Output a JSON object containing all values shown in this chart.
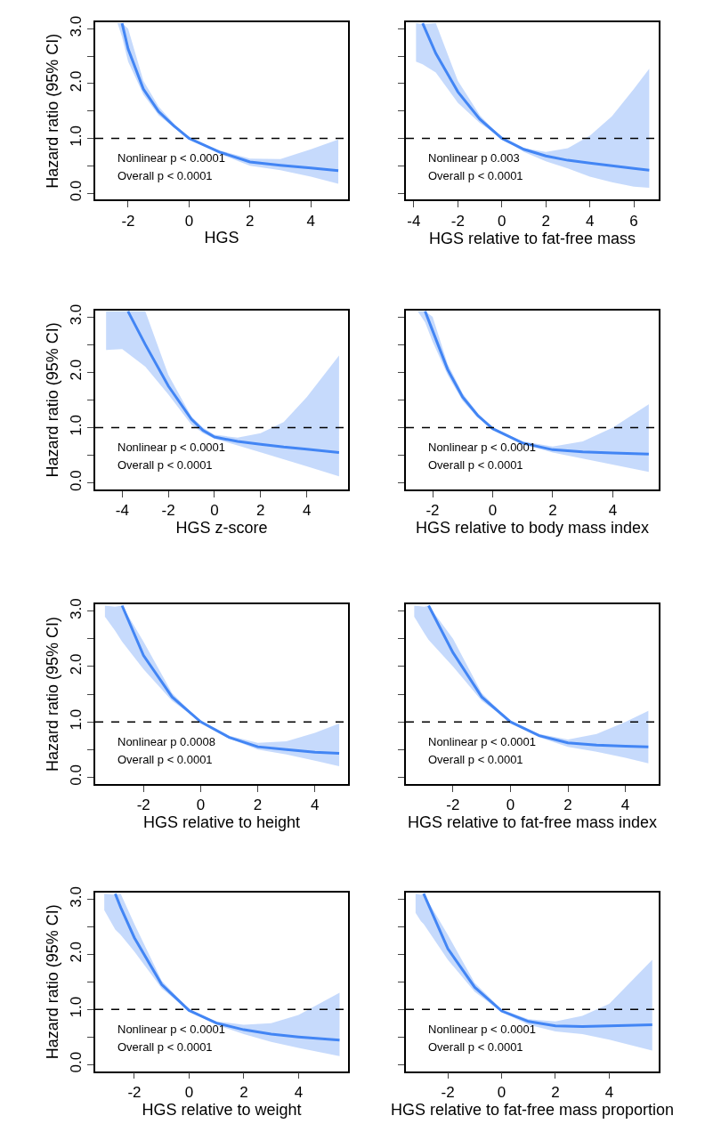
{
  "chart_data": [
    {
      "type": "line",
      "xlabel": "HGS",
      "ylabel": "Hazard ratio (95% CI)",
      "xlim": [
        -3.08,
        5.22
      ],
      "xticks": [
        -2,
        0,
        2,
        4
      ],
      "ylim": [
        -0.12,
        3.12
      ],
      "yticks": [
        {
          "value": 0,
          "label": "0.0"
        },
        {
          "value": 0.5,
          "label": null
        },
        {
          "value": 1,
          "label": "1.0"
        },
        {
          "value": 1.5,
          "label": null
        },
        {
          "value": 2,
          "label": "2.0"
        },
        {
          "value": 2.5,
          "label": null
        },
        {
          "value": 3,
          "label": "3.0"
        }
      ],
      "x": [
        -2.35,
        -2.2,
        -2,
        -1.5,
        -1,
        -0.5,
        0,
        1,
        2,
        3,
        4,
        4.9
      ],
      "marker": "none",
      "line_style": "solid",
      "series": [
        {
          "color": "#4285f4",
          "values": [
            null,
            3.1,
            2.63,
            1.9,
            1.49,
            1.23,
            1.0,
            0.75,
            0.57,
            0.51,
            0.46,
            0.41
          ],
          "lower": [
            3.1,
            2.85,
            2.4,
            1.8,
            1.42,
            1.2,
            1.0,
            0.72,
            0.5,
            0.42,
            0.3,
            0.17
          ],
          "upper": [
            3.1,
            3.1,
            3.0,
            2.05,
            1.58,
            1.27,
            1.0,
            0.78,
            0.63,
            0.62,
            0.8,
            0.98
          ]
        }
      ],
      "ref_lines": [
        {
          "axis": "y",
          "value": 1,
          "color": "#000000",
          "line_style": "dashed"
        }
      ],
      "annotations": [
        "Nonlinear p < 0.0001",
        "Overall p < 0.0001"
      ]
    },
    {
      "type": "line",
      "xlabel": "HGS relative to fat-free mass",
      "xlim": [
        -4.36,
        7.13
      ],
      "xticks": [
        -4,
        -2,
        0,
        2,
        4,
        6
      ],
      "ylim": [
        -0.12,
        3.12
      ],
      "yticks": [
        {
          "value": 0,
          "label": null
        },
        {
          "value": 0.5,
          "label": null
        },
        {
          "value": 1,
          "label": null
        },
        {
          "value": 1.5,
          "label": null
        },
        {
          "value": 2,
          "label": null
        },
        {
          "value": 2.5,
          "label": null
        },
        {
          "value": 3,
          "label": null
        }
      ],
      "tick_labels": "x",
      "x": [
        -3.9,
        -3.6,
        -3,
        -2,
        -1,
        0,
        1,
        2,
        3,
        4,
        5,
        6,
        6.7
      ],
      "marker": "none",
      "line_style": "solid",
      "series": [
        {
          "color": "#4285f4",
          "values": [
            null,
            3.1,
            2.55,
            1.85,
            1.35,
            1.0,
            0.8,
            0.68,
            0.6,
            0.55,
            0.5,
            0.45,
            0.42
          ],
          "lower": [
            2.4,
            2.35,
            2.2,
            1.65,
            1.28,
            1.0,
            0.75,
            0.58,
            0.45,
            0.3,
            0.2,
            0.12,
            0.1
          ],
          "upper": [
            3.1,
            3.08,
            3.1,
            2.05,
            1.42,
            1.0,
            0.82,
            0.75,
            0.82,
            1.05,
            1.4,
            1.9,
            2.27
          ]
        }
      ],
      "ref_lines": [
        {
          "axis": "y",
          "value": 1,
          "color": "#000000",
          "line_style": "dashed"
        }
      ],
      "annotations": [
        "Nonlinear p 0.003",
        "Overall p < 0.0001"
      ]
    },
    {
      "type": "line",
      "xlabel": "HGS z-score",
      "ylabel": "Hazard ratio (95% CI)",
      "xlim": [
        -5.17,
        5.79
      ],
      "xticks": [
        -4,
        -2,
        0,
        2,
        4
      ],
      "ylim": [
        -0.12,
        3.12
      ],
      "yticks": [
        {
          "value": 0,
          "label": "0.0"
        },
        {
          "value": 0.5,
          "label": null
        },
        {
          "value": 1,
          "label": "1.0"
        },
        {
          "value": 1.5,
          "label": null
        },
        {
          "value": 2,
          "label": "2.0"
        },
        {
          "value": 2.5,
          "label": null
        },
        {
          "value": 3,
          "label": "3.0"
        }
      ],
      "x": [
        -4.7,
        -4,
        -3.75,
        -3,
        -2,
        -1,
        -0.5,
        0,
        1,
        2,
        3,
        4,
        5.4
      ],
      "marker": "none",
      "line_style": "solid",
      "series": [
        {
          "color": "#4285f4",
          "values": [
            null,
            null,
            3.1,
            2.5,
            1.75,
            1.15,
            0.95,
            0.83,
            0.75,
            0.7,
            0.65,
            0.61,
            0.55
          ],
          "lower": [
            2.4,
            2.42,
            2.35,
            2.1,
            1.6,
            1.05,
            0.9,
            0.8,
            0.68,
            0.55,
            0.43,
            0.3,
            0.12
          ],
          "upper": [
            3.1,
            3.1,
            3.1,
            3.1,
            1.95,
            1.2,
            1.0,
            0.87,
            0.82,
            0.9,
            1.1,
            1.55,
            2.3
          ]
        }
      ],
      "ref_lines": [
        {
          "axis": "y",
          "value": 1,
          "color": "#000000",
          "line_style": "dashed"
        }
      ],
      "annotations": [
        "Nonlinear p < 0.0001",
        "Overall p < 0.0001"
      ]
    },
    {
      "type": "line",
      "xlabel": "HGS relative to body mass index",
      "xlim": [
        -2.89,
        5.53
      ],
      "xticks": [
        -2,
        0,
        2,
        4
      ],
      "ylim": [
        -0.12,
        3.12
      ],
      "yticks": [
        {
          "value": 0,
          "label": null
        },
        {
          "value": 0.5,
          "label": null
        },
        {
          "value": 1,
          "label": null
        },
        {
          "value": 1.5,
          "label": null
        },
        {
          "value": 2,
          "label": null
        },
        {
          "value": 2.5,
          "label": null
        },
        {
          "value": 3,
          "label": null
        }
      ],
      "tick_labels": "x",
      "x": [
        -2.5,
        -2.25,
        -2,
        -1.5,
        -1,
        -0.5,
        0,
        1,
        2,
        3,
        4,
        5.2
      ],
      "marker": "none",
      "line_style": "solid",
      "series": [
        {
          "color": "#4285f4",
          "values": [
            null,
            3.1,
            2.75,
            2.05,
            1.55,
            1.22,
            0.98,
            0.72,
            0.6,
            0.56,
            0.54,
            0.52
          ],
          "lower": [
            3.1,
            2.9,
            2.55,
            1.95,
            1.48,
            1.18,
            0.97,
            0.7,
            0.55,
            0.45,
            0.33,
            0.2
          ],
          "upper": [
            3.1,
            3.1,
            3.0,
            2.15,
            1.62,
            1.26,
            1.0,
            0.75,
            0.66,
            0.75,
            1.0,
            1.42
          ]
        }
      ],
      "ref_lines": [
        {
          "axis": "y",
          "value": 1,
          "color": "#000000",
          "line_style": "dashed"
        }
      ],
      "annotations": [
        "Nonlinear p < 0.0001",
        "Overall p < 0.0001"
      ]
    },
    {
      "type": "line",
      "xlabel": "HGS relative to height",
      "ylabel": "Hazard ratio (95% CI)",
      "xlim": [
        -3.69,
        5.16
      ],
      "xticks": [
        -2,
        0,
        2,
        4
      ],
      "ylim": [
        -0.12,
        3.12
      ],
      "yticks": [
        {
          "value": 0,
          "label": "0.0"
        },
        {
          "value": 0.5,
          "label": null
        },
        {
          "value": 1,
          "label": "1.0"
        },
        {
          "value": 1.5,
          "label": null
        },
        {
          "value": 2,
          "label": "2.0"
        },
        {
          "value": 2.5,
          "label": null
        },
        {
          "value": 3,
          "label": "3.0"
        }
      ],
      "x": [
        -3.35,
        -3,
        -2.75,
        -2,
        -1,
        0,
        1,
        2,
        3,
        4,
        4.85
      ],
      "marker": "none",
      "line_style": "solid",
      "series": [
        {
          "color": "#4285f4",
          "values": [
            null,
            null,
            3.1,
            2.2,
            1.45,
            1.0,
            0.72,
            0.55,
            0.5,
            0.45,
            0.43
          ],
          "lower": [
            2.9,
            2.65,
            2.45,
            1.95,
            1.38,
            1.0,
            0.7,
            0.5,
            0.41,
            0.3,
            0.2
          ],
          "upper": [
            3.1,
            3.08,
            3.1,
            2.45,
            1.52,
            1.0,
            0.75,
            0.62,
            0.65,
            0.8,
            0.97
          ]
        }
      ],
      "ref_lines": [
        {
          "axis": "y",
          "value": 1,
          "color": "#000000",
          "line_style": "dashed"
        }
      ],
      "annotations": [
        "Nonlinear p 0.0008",
        "Overall p < 0.0001"
      ]
    },
    {
      "type": "line",
      "xlabel": "HGS relative to fat-free mass index",
      "xlim": [
        -3.64,
        5.16
      ],
      "xticks": [
        -2,
        0,
        2,
        4
      ],
      "ylim": [
        -0.12,
        3.12
      ],
      "yticks": [
        {
          "value": 0,
          "label": null
        },
        {
          "value": 0.5,
          "label": null
        },
        {
          "value": 1,
          "label": null
        },
        {
          "value": 1.5,
          "label": null
        },
        {
          "value": 2,
          "label": null
        },
        {
          "value": 2.5,
          "label": null
        },
        {
          "value": 3,
          "label": null
        }
      ],
      "tick_labels": "x",
      "x": [
        -3.35,
        -3,
        -2.85,
        -2,
        -1,
        0,
        1,
        2,
        3,
        4,
        4.8
      ],
      "marker": "none",
      "line_style": "solid",
      "series": [
        {
          "color": "#4285f4",
          "values": [
            null,
            null,
            3.1,
            2.25,
            1.45,
            1.0,
            0.75,
            0.62,
            0.58,
            0.56,
            0.55
          ],
          "lower": [
            2.9,
            2.6,
            2.48,
            2.0,
            1.38,
            1.0,
            0.72,
            0.55,
            0.46,
            0.35,
            0.25
          ],
          "upper": [
            3.1,
            3.08,
            3.1,
            2.5,
            1.52,
            1.0,
            0.78,
            0.68,
            0.78,
            1.0,
            1.2
          ]
        }
      ],
      "ref_lines": [
        {
          "axis": "y",
          "value": 1,
          "color": "#000000",
          "line_style": "dashed"
        }
      ],
      "annotations": [
        "Nonlinear p < 0.0001",
        "Overall p < 0.0001"
      ]
    },
    {
      "type": "line",
      "xlabel": "HGS relative to weight",
      "ylabel": "Hazard ratio (95% CI)",
      "xlim": [
        -3.43,
        5.81
      ],
      "xticks": [
        -2,
        0,
        2,
        4
      ],
      "ylim": [
        -0.12,
        3.12
      ],
      "yticks": [
        {
          "value": 0,
          "label": "0.0"
        },
        {
          "value": 0.5,
          "label": null
        },
        {
          "value": 1,
          "label": "1.0"
        },
        {
          "value": 1.5,
          "label": null
        },
        {
          "value": 2,
          "label": "2.0"
        },
        {
          "value": 2.5,
          "label": null
        },
        {
          "value": 3,
          "label": "3.0"
        }
      ],
      "x": [
        -3.1,
        -2.7,
        -2.5,
        -2,
        -1,
        0,
        1,
        2,
        3,
        4,
        5.5
      ],
      "marker": "none",
      "line_style": "solid",
      "series": [
        {
          "color": "#4285f4",
          "values": [
            null,
            3.1,
            2.85,
            2.3,
            1.45,
            0.98,
            0.75,
            0.63,
            0.55,
            0.5,
            0.44
          ],
          "lower": [
            2.8,
            2.45,
            2.35,
            2.05,
            1.38,
            0.97,
            0.72,
            0.55,
            0.41,
            0.3,
            0.15
          ],
          "upper": [
            3.1,
            3.08,
            3.1,
            2.55,
            1.52,
            1.0,
            0.78,
            0.72,
            0.75,
            0.9,
            1.3
          ]
        }
      ],
      "ref_lines": [
        {
          "axis": "y",
          "value": 1,
          "color": "#000000",
          "line_style": "dashed"
        }
      ],
      "annotations": [
        "Nonlinear p < 0.0001",
        "Overall p < 0.0001"
      ]
    },
    {
      "type": "line",
      "xlabel": "HGS relative to fat-free mass proportion",
      "xlim": [
        -3.56,
        5.84
      ],
      "xticks": [
        -2,
        0,
        2,
        4
      ],
      "ylim": [
        -0.12,
        3.12
      ],
      "yticks": [
        {
          "value": 0,
          "label": null
        },
        {
          "value": 0.5,
          "label": null
        },
        {
          "value": 1,
          "label": null
        },
        {
          "value": 1.5,
          "label": null
        },
        {
          "value": 2,
          "label": null
        },
        {
          "value": 2.5,
          "label": null
        },
        {
          "value": 3,
          "label": null
        }
      ],
      "tick_labels": "x",
      "x": [
        -3.2,
        -3,
        -2.9,
        -2,
        -1,
        0,
        1,
        2,
        3,
        4,
        5.6
      ],
      "marker": "none",
      "line_style": "solid",
      "series": [
        {
          "color": "#4285f4",
          "values": [
            null,
            null,
            3.1,
            2.1,
            1.4,
            0.97,
            0.78,
            0.7,
            0.69,
            0.7,
            0.72
          ],
          "lower": [
            2.75,
            2.6,
            2.55,
            1.9,
            1.32,
            0.95,
            0.72,
            0.6,
            0.55,
            0.45,
            0.25
          ],
          "upper": [
            3.1,
            3.08,
            3.1,
            2.35,
            1.48,
            1.0,
            0.82,
            0.78,
            0.88,
            1.1,
            1.9
          ]
        }
      ],
      "ref_lines": [
        {
          "axis": "y",
          "value": 1,
          "color": "#000000",
          "line_style": "dashed"
        }
      ],
      "annotations": [
        "Nonlinear p < 0.0001",
        "Overall p < 0.0001"
      ]
    }
  ]
}
